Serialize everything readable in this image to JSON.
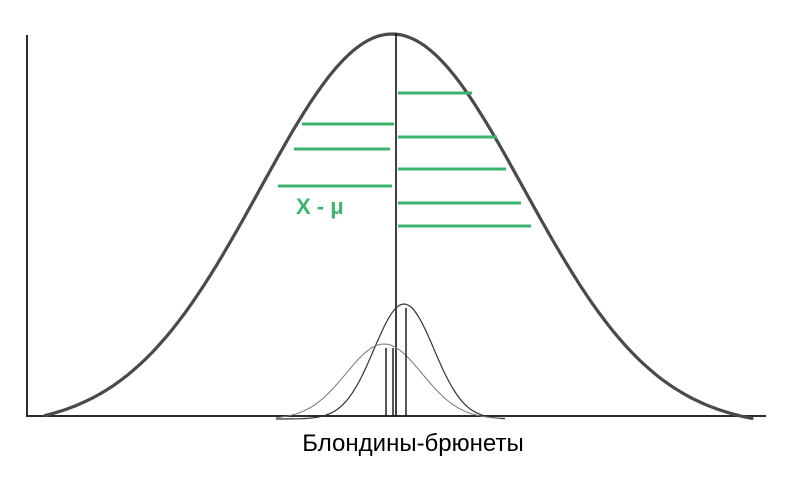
{
  "axis_label": "Блондины-брюнеты",
  "deviation_label": "X - μ",
  "colors": {
    "deviation": "#3bb56e",
    "curve": "#4a4a4a"
  },
  "icons": {
    "big_curve": "normal-distribution-curve",
    "small_curves": "overlapping-small-distribution-curves"
  }
}
